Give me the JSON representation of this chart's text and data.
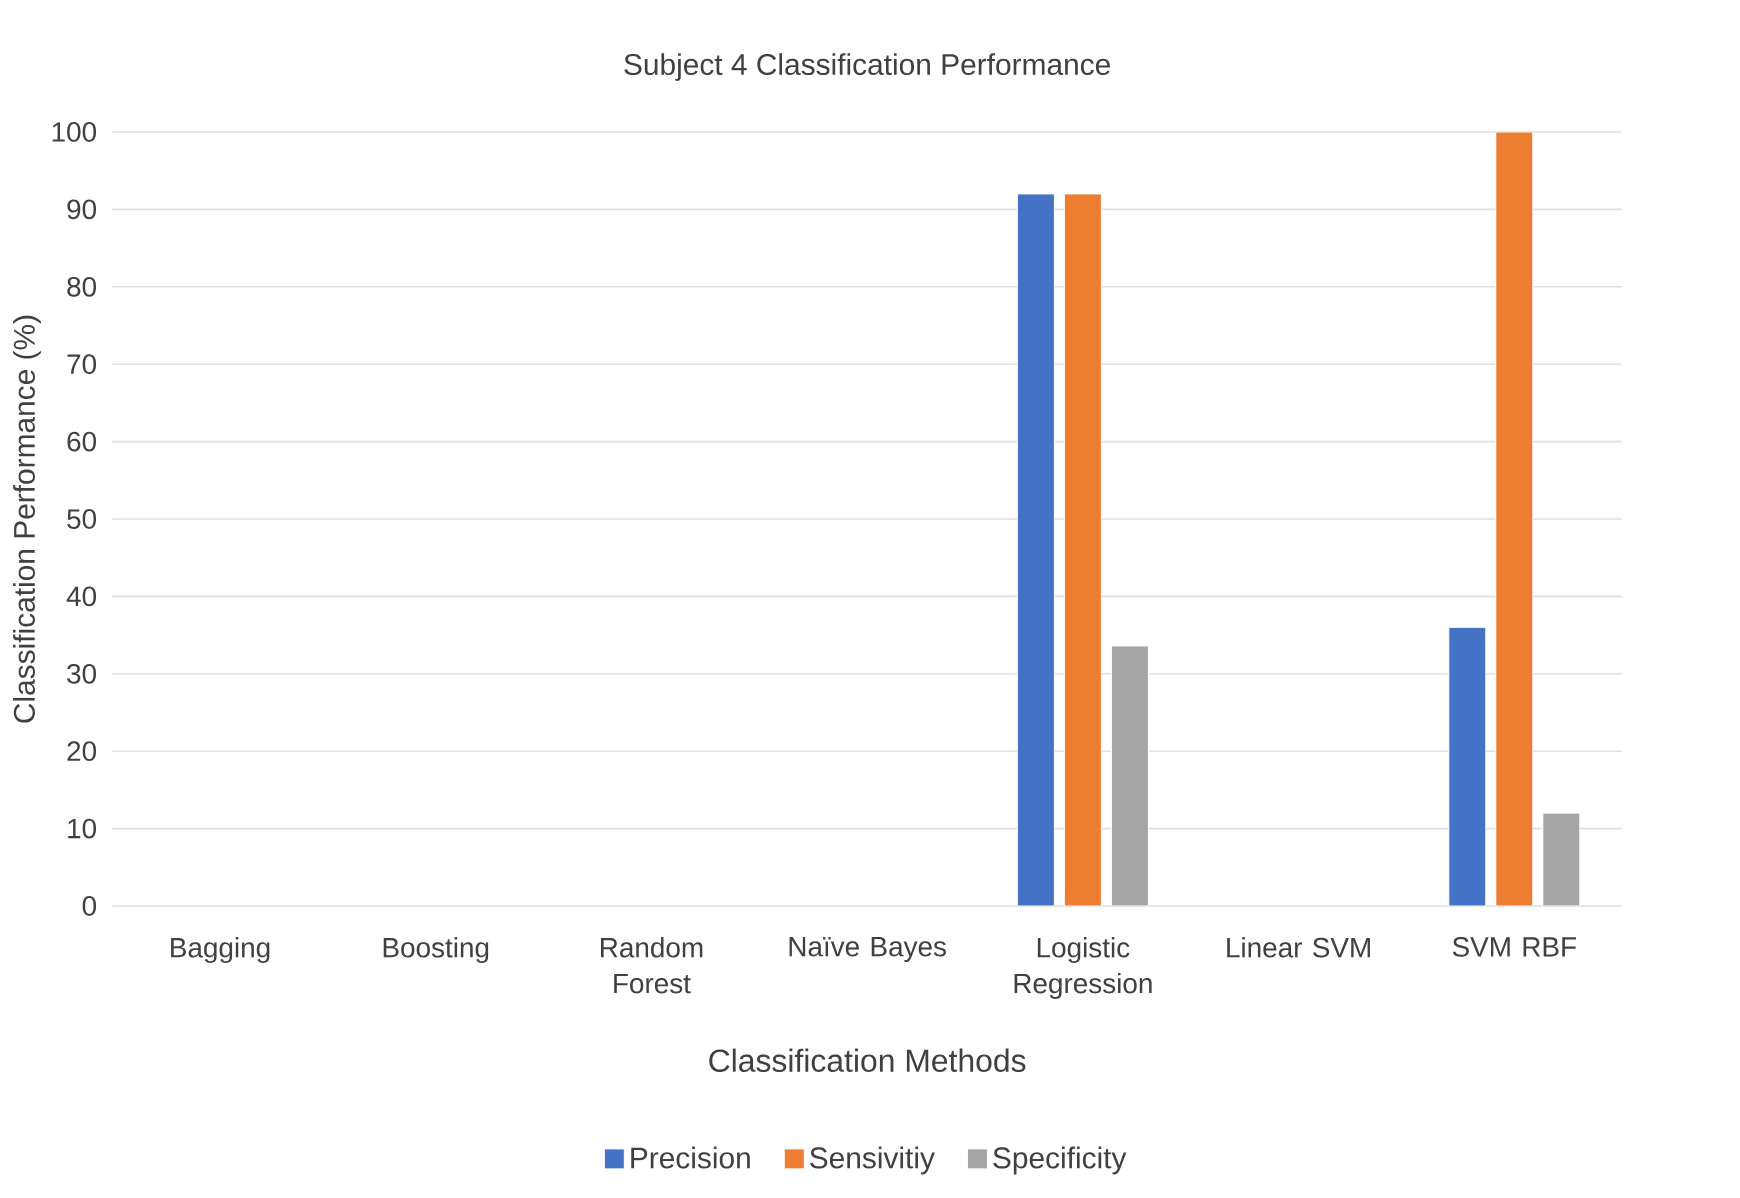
{
  "chart_data": {
    "type": "bar",
    "title": "Subject 4 Classification Performance",
    "xlabel": "Classification Methods",
    "ylabel": "Classification Performance (%)",
    "categories": [
      "Bagging",
      "Boosting",
      "Random Forest",
      "Naïve Bayes",
      "Logistic Regression",
      "Linear SVM",
      "SVM RBF"
    ],
    "series": [
      {
        "name": "Precision",
        "color": "#4472c4",
        "values": [
          null,
          null,
          null,
          null,
          92,
          null,
          36
        ]
      },
      {
        "name": "Sensivitiy",
        "color": "#ed7d31",
        "values": [
          null,
          null,
          null,
          null,
          92,
          null,
          100
        ]
      },
      {
        "name": "Specificity",
        "color": "#a5a5a5",
        "values": [
          null,
          null,
          null,
          null,
          33.6,
          null,
          12
        ]
      }
    ],
    "ylim": [
      0,
      100
    ],
    "yticks": [
      0,
      10,
      20,
      30,
      40,
      50,
      60,
      70,
      80,
      90,
      100
    ],
    "grid": "y",
    "legend": "bottom"
  }
}
